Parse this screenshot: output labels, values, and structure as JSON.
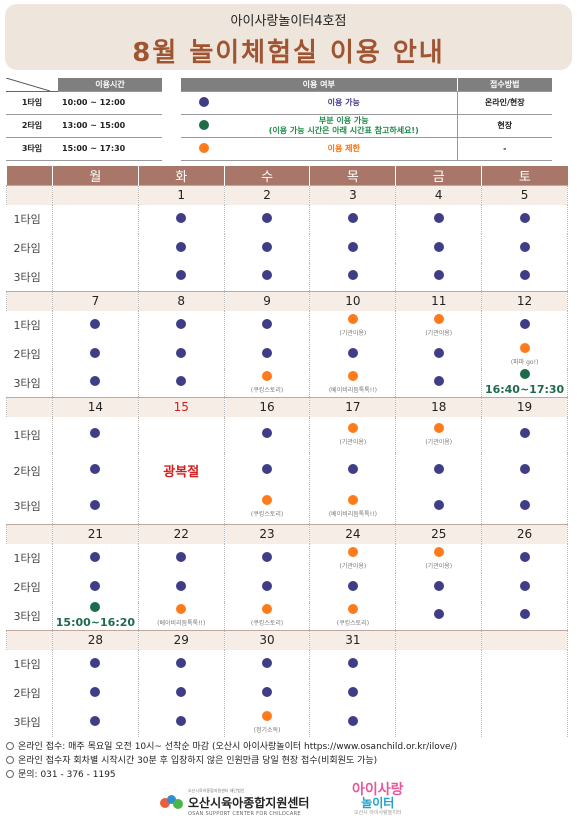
{
  "header": {
    "subtitle": "아이사랑놀이터4호점",
    "title": "8월 놀이체험실 이용 안내"
  },
  "time_table": {
    "header": "이용시간",
    "rows": [
      {
        "slot": "1타임",
        "time": "10:00 ~ 12:00"
      },
      {
        "slot": "2타임",
        "time": "13:00 ~ 15:00"
      },
      {
        "slot": "3타임",
        "time": "15:00 ~ 17:30"
      }
    ]
  },
  "legend": {
    "header_status": "이용 여부",
    "header_method": "접수방법",
    "blue_label": "이용 가능",
    "green_label": "부분 이용 가능",
    "green_sub": "(이용 가능 시간은 아래 시간표 참고하세요!)",
    "orange_label": "이용 제한",
    "method_blue": "온라인/현장",
    "method_green": "현장",
    "method_orange": "-",
    "colors": {
      "blue": "#3f3d86",
      "green": "#1e6b4a",
      "orange": "#ff7a1a"
    }
  },
  "calendar": {
    "weekdays": [
      "월",
      "화",
      "수",
      "목",
      "금",
      "토"
    ],
    "slot_labels": [
      "1타임",
      "2타임",
      "3타임"
    ],
    "weeks": [
      {
        "dates": [
          "",
          "1",
          "2",
          "3",
          "4",
          "5"
        ],
        "slots": [
          [
            null,
            {
              "s": "blue"
            },
            {
              "s": "blue"
            },
            {
              "s": "blue"
            },
            {
              "s": "blue"
            },
            {
              "s": "blue"
            }
          ],
          [
            null,
            {
              "s": "blue"
            },
            {
              "s": "blue"
            },
            {
              "s": "blue"
            },
            {
              "s": "blue"
            },
            {
              "s": "blue"
            }
          ],
          [
            null,
            {
              "s": "blue"
            },
            {
              "s": "blue"
            },
            {
              "s": "blue"
            },
            {
              "s": "blue"
            },
            {
              "s": "blue"
            }
          ]
        ]
      },
      {
        "dates": [
          "7",
          "8",
          "9",
          "10",
          "11",
          "12"
        ],
        "slots": [
          [
            {
              "s": "blue"
            },
            {
              "s": "blue"
            },
            {
              "s": "blue"
            },
            {
              "s": "orange",
              "note": "(기관이용)"
            },
            {
              "s": "orange",
              "note": "(기관이용)"
            },
            {
              "s": "blue"
            }
          ],
          [
            {
              "s": "blue"
            },
            {
              "s": "blue"
            },
            {
              "s": "blue"
            },
            {
              "s": "blue"
            },
            {
              "s": "blue"
            },
            {
              "s": "orange",
              "note": "(파파 go!)"
            }
          ],
          [
            {
              "s": "blue"
            },
            {
              "s": "blue"
            },
            {
              "s": "orange",
              "note": "(쿠킹스토리)"
            },
            {
              "s": "orange",
              "note": "(베이비리듬톡톡!!)"
            },
            {
              "s": "blue"
            },
            {
              "s": "green",
              "time": "16:40~17:30"
            }
          ]
        ]
      },
      {
        "dates": [
          "14",
          "15",
          "16",
          "17",
          "18",
          "19"
        ],
        "holiday_col": 1,
        "holiday_label": "광복절",
        "slots": [
          [
            {
              "s": "blue"
            },
            null,
            {
              "s": "blue"
            },
            {
              "s": "orange",
              "note": "(기관이용)"
            },
            {
              "s": "orange",
              "note": "(기관이용)"
            },
            {
              "s": "blue"
            }
          ],
          [
            {
              "s": "blue"
            },
            null,
            {
              "s": "blue"
            },
            {
              "s": "blue"
            },
            {
              "s": "blue"
            },
            {
              "s": "blue"
            }
          ],
          [
            {
              "s": "blue"
            },
            null,
            {
              "s": "orange",
              "note": "(쿠킹스토리)"
            },
            {
              "s": "orange",
              "note": "(베이비리듬톡톡!!)"
            },
            {
              "s": "blue"
            },
            {
              "s": "blue"
            }
          ]
        ]
      },
      {
        "dates": [
          "21",
          "22",
          "23",
          "24",
          "25",
          "26"
        ],
        "slots": [
          [
            {
              "s": "blue"
            },
            {
              "s": "blue"
            },
            {
              "s": "blue"
            },
            {
              "s": "orange",
              "note": "(기관이용)"
            },
            {
              "s": "orange",
              "note": "(기관이용)"
            },
            {
              "s": "blue"
            }
          ],
          [
            {
              "s": "blue"
            },
            {
              "s": "blue"
            },
            {
              "s": "blue"
            },
            {
              "s": "blue"
            },
            {
              "s": "blue"
            },
            {
              "s": "blue"
            }
          ],
          [
            {
              "s": "green",
              "time": "15:00~16:20"
            },
            {
              "s": "orange",
              "note": "(베이비리듬톡톡!!)"
            },
            {
              "s": "orange",
              "note": "(쿠킹스토리)"
            },
            {
              "s": "orange",
              "note": "(쿠킹스토리)"
            },
            {
              "s": "blue"
            },
            {
              "s": "blue"
            }
          ]
        ]
      },
      {
        "dates": [
          "28",
          "29",
          "30",
          "31",
          "",
          ""
        ],
        "slots": [
          [
            {
              "s": "blue"
            },
            {
              "s": "blue"
            },
            {
              "s": "blue"
            },
            {
              "s": "blue"
            },
            null,
            null
          ],
          [
            {
              "s": "blue"
            },
            {
              "s": "blue"
            },
            {
              "s": "blue"
            },
            {
              "s": "blue"
            },
            null,
            null
          ],
          [
            {
              "s": "blue"
            },
            {
              "s": "blue"
            },
            {
              "s": "orange",
              "note": "(정기소독)"
            },
            {
              "s": "blue"
            },
            null,
            null
          ]
        ]
      }
    ]
  },
  "footer": {
    "lines": [
      "온라인 접수: 매주 목요일 오전 10시~ 선착순 마감 (오산시 아이사랑놀이터 https://www.osanchild.or.kr/ilove/)",
      "온라인 접수자 회차별 시작시간 30분 후 입장하지 않은 인원만큼 당일 현장 접수(비회원도 가능)",
      "문의: 031 - 376 - 1195"
    ]
  },
  "logos": {
    "center_small": "오산시육아종합지원센터 재단법인",
    "center_name": "오산시육아종합지원센터",
    "center_eng": "OSAN SUPPORT CENTER FOR CHILDCARE",
    "play_a": "아이사랑",
    "play_b": "놀이터",
    "play_c": "오산시 아이사랑놀이터"
  }
}
